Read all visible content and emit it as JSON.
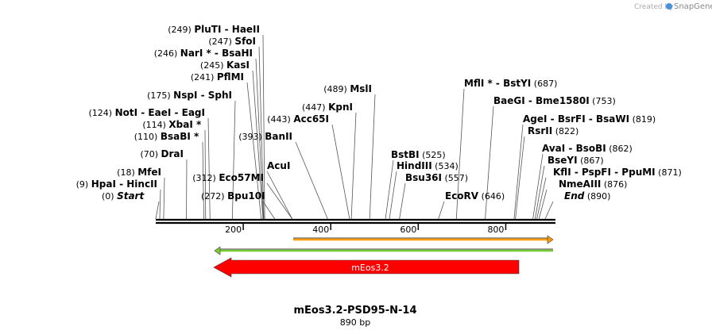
{
  "watermark": {
    "prefix": "Created by",
    "brand": "SnapGene"
  },
  "map": {
    "name": "mEos3.2-PSD95-N-14",
    "length_label": "890 bp",
    "length_bp": 890,
    "ticks": [
      "200",
      "400",
      "600",
      "800"
    ],
    "tick_values": [
      200,
      400,
      600,
      800
    ]
  },
  "sites": [
    {
      "name": "Start",
      "pos": "(0)",
      "bp": 0,
      "style": "italic",
      "side": "left"
    },
    {
      "name": "HpaI  -  HincII",
      "pos": "(9)",
      "bp": 9,
      "side": "left"
    },
    {
      "name": "MfeI",
      "pos": "(18)",
      "bp": 18,
      "side": "left"
    },
    {
      "name": "DraI",
      "pos": "(70)",
      "bp": 70,
      "side": "left"
    },
    {
      "name": "BsaBI *",
      "pos": "(110)",
      "bp": 110,
      "side": "left"
    },
    {
      "name": "XbaI *",
      "pos": "(114)",
      "bp": 114,
      "side": "left"
    },
    {
      "name": "NotI  -  EaeI  -  EagI",
      "pos": "(124)",
      "bp": 124,
      "side": "left"
    },
    {
      "name": "NspI  -  SphI",
      "pos": "(175)",
      "bp": 175,
      "side": "left"
    },
    {
      "name": "PflMI",
      "pos": "(241)",
      "bp": 241,
      "side": "left"
    },
    {
      "name": "KasI",
      "pos": "(245)",
      "bp": 245,
      "side": "left"
    },
    {
      "name": "NarI *  -  BsaHI",
      "pos": "(246)",
      "bp": 246,
      "side": "left"
    },
    {
      "name": "SfoI",
      "pos": "(247)",
      "bp": 247,
      "side": "left"
    },
    {
      "name": "PluTI  -  HaeII",
      "pos": "(249)",
      "bp": 249,
      "side": "left"
    },
    {
      "name": "Bpu10I",
      "pos": "(272)",
      "bp": 272,
      "side": "left"
    },
    {
      "name": "Eco57MI",
      "pos": "(312)",
      "bp": 312,
      "side": "left"
    },
    {
      "name": "AcuI",
      "pos": "",
      "bp": 312,
      "side": "right"
    },
    {
      "name": "BanII",
      "pos": "(393)",
      "bp": 393,
      "side": "left"
    },
    {
      "name": "Acc65I",
      "pos": "(443)",
      "bp": 443,
      "side": "left"
    },
    {
      "name": "KpnI",
      "pos": "(447)",
      "bp": 447,
      "side": "left"
    },
    {
      "name": "MslI",
      "pos": "(489)",
      "bp": 489,
      "side": "left"
    },
    {
      "name": "BstBI",
      "pos": "(525)",
      "bp": 525,
      "side": "right"
    },
    {
      "name": "HindIII",
      "pos": "(534)",
      "bp": 534,
      "side": "right"
    },
    {
      "name": "Bsu36I",
      "pos": "(557)",
      "bp": 557,
      "side": "right"
    },
    {
      "name": "EcoRV",
      "pos": "(646)",
      "bp": 646,
      "side": "right"
    },
    {
      "name": "MflI *  -  BstYI",
      "pos": "(687)",
      "bp": 687,
      "side": "right"
    },
    {
      "name": "BaeGI  -  Bme1580I",
      "pos": "(753)",
      "bp": 753,
      "side": "right"
    },
    {
      "name": "AgeI  -  BsrFI  -  BsaWI",
      "pos": "(819)",
      "bp": 819,
      "side": "right"
    },
    {
      "name": "RsrII",
      "pos": "(822)",
      "bp": 822,
      "side": "right"
    },
    {
      "name": "AvaI  -  BsoBI",
      "pos": "(862)",
      "bp": 862,
      "side": "right"
    },
    {
      "name": "BseYI",
      "pos": "(867)",
      "bp": 867,
      "side": "right"
    },
    {
      "name": "KflI  -  PspFI  -  PpuMI",
      "pos": "(871)",
      "bp": 871,
      "side": "right"
    },
    {
      "name": "NmeAIII",
      "pos": "(876)",
      "bp": 876,
      "side": "right"
    },
    {
      "name": "End",
      "pos": "(890)",
      "bp": 890,
      "style": "italic",
      "side": "right"
    }
  ],
  "features": [
    {
      "name": "mEos3.2",
      "start": 129,
      "end": 810,
      "direction": "reverse",
      "color": "#ff0000",
      "type": "cds"
    },
    {
      "name": "",
      "start": 130,
      "end": 890,
      "direction": "reverse",
      "color": "#77cc33",
      "type": "thin"
    },
    {
      "name": "",
      "start": 310,
      "end": 890,
      "direction": "forward",
      "color": "#ff9900",
      "type": "thin"
    }
  ],
  "colors": {
    "backbone": "#000000",
    "cds": "#ff0000",
    "green": "#77cc33",
    "orange": "#ff9900"
  }
}
